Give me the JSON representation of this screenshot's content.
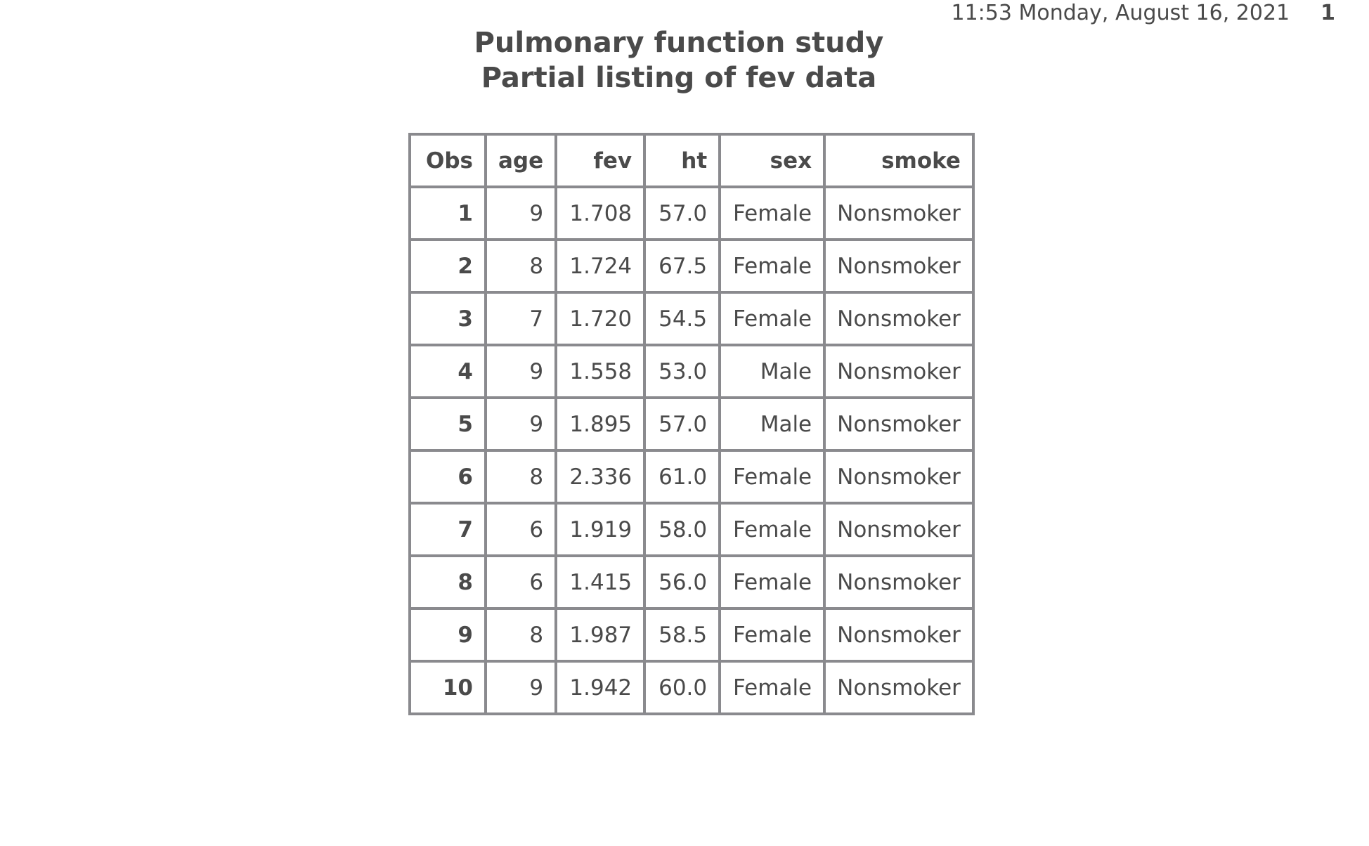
{
  "header": {
    "datetime": "11:53 Monday, August 16, 2021",
    "page_number": "1"
  },
  "titles": {
    "title1": "Pulmonary function study",
    "title2": "Partial listing of fev data"
  },
  "table": {
    "columns": [
      "Obs",
      "age",
      "fev",
      "ht",
      "sex",
      "smoke"
    ],
    "rows": [
      [
        "1",
        "9",
        "1.708",
        "57.0",
        "Female",
        "Nonsmoker"
      ],
      [
        "2",
        "8",
        "1.724",
        "67.5",
        "Female",
        "Nonsmoker"
      ],
      [
        "3",
        "7",
        "1.720",
        "54.5",
        "Female",
        "Nonsmoker"
      ],
      [
        "4",
        "9",
        "1.558",
        "53.0",
        "Male",
        "Nonsmoker"
      ],
      [
        "5",
        "9",
        "1.895",
        "57.0",
        "Male",
        "Nonsmoker"
      ],
      [
        "6",
        "8",
        "2.336",
        "61.0",
        "Female",
        "Nonsmoker"
      ],
      [
        "7",
        "6",
        "1.919",
        "58.0",
        "Female",
        "Nonsmoker"
      ],
      [
        "8",
        "6",
        "1.415",
        "56.0",
        "Female",
        "Nonsmoker"
      ],
      [
        "9",
        "8",
        "1.987",
        "58.5",
        "Female",
        "Nonsmoker"
      ],
      [
        "10",
        "9",
        "1.942",
        "60.0",
        "Female",
        "Nonsmoker"
      ]
    ]
  }
}
